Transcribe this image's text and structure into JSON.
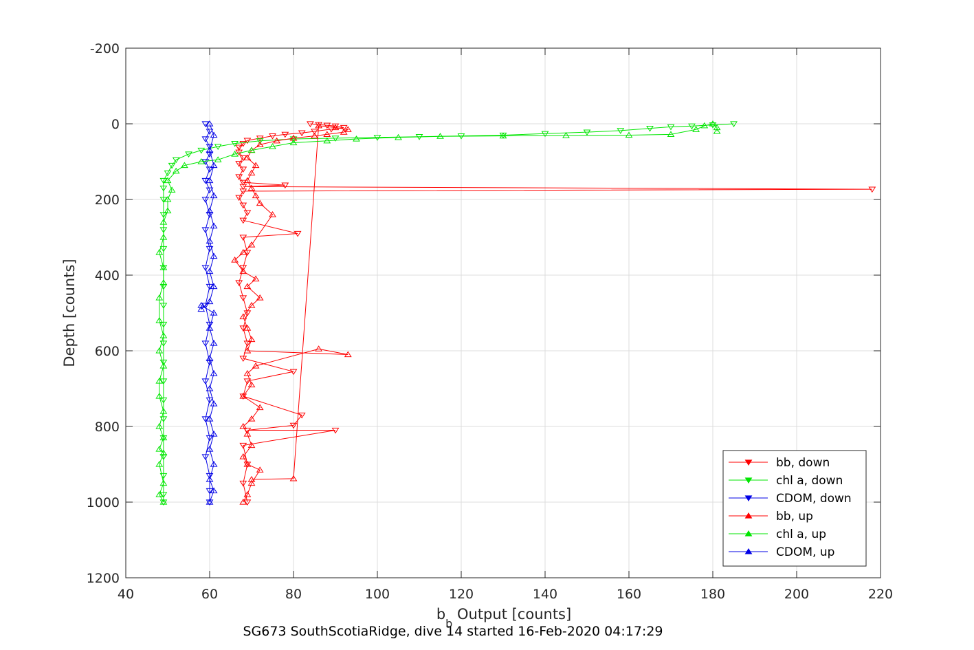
{
  "chart_data": {
    "type": "line",
    "title": "",
    "xlabel_main": "b",
    "xlabel_sub": "b",
    "xlabel_rest": " Output [counts]",
    "ylabel": "Depth [counts]",
    "caption": "SG673 SouthScotiaRidge, dive 14 started 16-Feb-2020 04:17:29",
    "xlim": [
      40,
      220
    ],
    "ylim": [
      -200,
      1200
    ],
    "y_reversed": true,
    "grid": true,
    "legend_position": "bottom-right",
    "xticks": [
      40,
      60,
      80,
      100,
      120,
      140,
      160,
      180,
      200,
      220
    ],
    "yticks": [
      -200,
      0,
      200,
      400,
      600,
      800,
      1000,
      1200
    ],
    "xtick_labels": [
      "40",
      "60",
      "80",
      "100",
      "120",
      "140",
      "160",
      "180",
      "200",
      "220"
    ],
    "ytick_labels": [
      "-200",
      "0",
      "200",
      "400",
      "600",
      "800",
      "1000",
      "1200"
    ],
    "series": [
      {
        "name": "bb, down",
        "color": "#ff0000",
        "marker": "triangle-down",
        "points": [
          [
            84,
            0
          ],
          [
            86,
            2
          ],
          [
            88,
            4
          ],
          [
            90,
            6
          ],
          [
            92,
            10
          ],
          [
            89,
            14
          ],
          [
            85,
            20
          ],
          [
            82,
            24
          ],
          [
            78,
            28
          ],
          [
            75,
            32
          ],
          [
            72,
            38
          ],
          [
            69,
            44
          ],
          [
            68,
            52
          ],
          [
            67,
            62
          ],
          [
            67,
            75
          ],
          [
            68,
            90
          ],
          [
            67,
            105
          ],
          [
            68,
            120
          ],
          [
            67,
            140
          ],
          [
            68,
            155
          ],
          [
            78,
            162
          ],
          [
            68,
            166
          ],
          [
            218,
            173
          ],
          [
            68,
            178
          ],
          [
            67,
            195
          ],
          [
            68,
            215
          ],
          [
            69,
            235
          ],
          [
            68,
            255
          ],
          [
            81,
            290
          ],
          [
            68,
            300
          ],
          [
            69,
            340
          ],
          [
            68,
            380
          ],
          [
            67,
            420
          ],
          [
            68,
            460
          ],
          [
            69,
            500
          ],
          [
            68,
            540
          ],
          [
            69,
            580
          ],
          [
            68,
            620
          ],
          [
            80,
            655
          ],
          [
            69,
            680
          ],
          [
            68,
            720
          ],
          [
            82,
            770
          ],
          [
            80,
            797
          ],
          [
            69,
            810
          ],
          [
            90,
            810
          ],
          [
            68,
            850
          ],
          [
            69,
            900
          ],
          [
            68,
            950
          ],
          [
            69,
            1000
          ]
        ]
      },
      {
        "name": "chl a, down",
        "color": "#00e600",
        "marker": "triangle-down",
        "points": [
          [
            185,
            0
          ],
          [
            180,
            3
          ],
          [
            175,
            6
          ],
          [
            170,
            8
          ],
          [
            165,
            12
          ],
          [
            158,
            18
          ],
          [
            150,
            22
          ],
          [
            140,
            26
          ],
          [
            130,
            30
          ],
          [
            120,
            32
          ],
          [
            110,
            34
          ],
          [
            100,
            36
          ],
          [
            90,
            38
          ],
          [
            80,
            40
          ],
          [
            72,
            45
          ],
          [
            66,
            52
          ],
          [
            62,
            60
          ],
          [
            58,
            70
          ],
          [
            55,
            80
          ],
          [
            52,
            95
          ],
          [
            51,
            110
          ],
          [
            50,
            130
          ],
          [
            49,
            150
          ],
          [
            49,
            170
          ],
          [
            49,
            200
          ],
          [
            49,
            240
          ],
          [
            49,
            280
          ],
          [
            49,
            330
          ],
          [
            49,
            380
          ],
          [
            49,
            430
          ],
          [
            49,
            480
          ],
          [
            49,
            530
          ],
          [
            49,
            580
          ],
          [
            49,
            630
          ],
          [
            49,
            680
          ],
          [
            49,
            730
          ],
          [
            49,
            780
          ],
          [
            49,
            830
          ],
          [
            49,
            880
          ],
          [
            49,
            930
          ],
          [
            49,
            980
          ],
          [
            49,
            1000
          ]
        ]
      },
      {
        "name": "CDOM, down",
        "color": "#0000e6",
        "marker": "triangle-down",
        "points": [
          [
            59,
            0
          ],
          [
            60,
            20
          ],
          [
            59,
            40
          ],
          [
            60,
            60
          ],
          [
            60,
            80
          ],
          [
            59,
            100
          ],
          [
            60,
            120
          ],
          [
            59,
            150
          ],
          [
            60,
            175
          ],
          [
            59,
            200
          ],
          [
            60,
            240
          ],
          [
            59,
            280
          ],
          [
            60,
            330
          ],
          [
            59,
            380
          ],
          [
            60,
            430
          ],
          [
            59,
            480
          ],
          [
            60,
            530
          ],
          [
            59,
            580
          ],
          [
            60,
            630
          ],
          [
            59,
            680
          ],
          [
            60,
            730
          ],
          [
            59,
            780
          ],
          [
            60,
            830
          ],
          [
            59,
            880
          ],
          [
            60,
            930
          ],
          [
            60,
            970
          ],
          [
            60,
            1000
          ]
        ]
      },
      {
        "name": "bb, up",
        "color": "#ff0000",
        "marker": "triangle-up",
        "points": [
          [
            68,
            1000
          ],
          [
            69,
            980
          ],
          [
            70,
            950
          ],
          [
            72,
            915
          ],
          [
            69,
            900
          ],
          [
            68,
            880
          ],
          [
            70,
            850
          ],
          [
            69,
            820
          ],
          [
            68,
            800
          ],
          [
            70,
            780
          ],
          [
            72,
            750
          ],
          [
            68,
            720
          ],
          [
            70,
            690
          ],
          [
            69,
            660
          ],
          [
            71,
            640
          ],
          [
            86,
            595
          ],
          [
            93,
            610
          ],
          [
            69,
            600
          ],
          [
            70,
            570
          ],
          [
            69,
            540
          ],
          [
            68,
            510
          ],
          [
            70,
            480
          ],
          [
            72,
            460
          ],
          [
            69,
            430
          ],
          [
            71,
            410
          ],
          [
            68,
            390
          ],
          [
            66,
            360
          ],
          [
            68,
            340
          ],
          [
            70,
            320
          ],
          [
            75,
            240
          ],
          [
            72,
            210
          ],
          [
            71,
            190
          ],
          [
            70,
            170
          ],
          [
            69,
            150
          ],
          [
            70,
            130
          ],
          [
            71,
            110
          ],
          [
            69,
            90
          ],
          [
            70,
            70
          ],
          [
            72,
            55
          ],
          [
            76,
            45
          ],
          [
            80,
            38
          ],
          [
            85,
            32
          ],
          [
            88,
            28
          ],
          [
            92,
            22
          ],
          [
            93,
            15
          ],
          [
            90,
            10
          ],
          [
            86,
            5
          ],
          [
            80,
            938
          ],
          [
            70,
            940
          ]
        ]
      },
      {
        "name": "chl a, up",
        "color": "#00e600",
        "marker": "triangle-up",
        "points": [
          [
            49,
            1000
          ],
          [
            48,
            980
          ],
          [
            49,
            950
          ],
          [
            48,
            900
          ],
          [
            49,
            870
          ],
          [
            48,
            860
          ],
          [
            49,
            830
          ],
          [
            48,
            800
          ],
          [
            49,
            760
          ],
          [
            48,
            720
          ],
          [
            48,
            680
          ],
          [
            49,
            640
          ],
          [
            48,
            600
          ],
          [
            49,
            560
          ],
          [
            48,
            520
          ],
          [
            48,
            460
          ],
          [
            49,
            420
          ],
          [
            49,
            380
          ],
          [
            48,
            340
          ],
          [
            49,
            300
          ],
          [
            49,
            260
          ],
          [
            50,
            230
          ],
          [
            50,
            200
          ],
          [
            51,
            175
          ],
          [
            50,
            150
          ],
          [
            52,
            125
          ],
          [
            54,
            110
          ],
          [
            58,
            100
          ],
          [
            62,
            95
          ],
          [
            66,
            80
          ],
          [
            70,
            70
          ],
          [
            75,
            60
          ],
          [
            80,
            50
          ],
          [
            88,
            45
          ],
          [
            95,
            40
          ],
          [
            105,
            36
          ],
          [
            115,
            33
          ],
          [
            130,
            32
          ],
          [
            145,
            31
          ],
          [
            160,
            30
          ],
          [
            170,
            28
          ],
          [
            176,
            15
          ],
          [
            178,
            5
          ],
          [
            180,
            0
          ],
          [
            181,
            10
          ],
          [
            181,
            20
          ]
        ]
      },
      {
        "name": "CDOM, up",
        "color": "#0000e6",
        "marker": "triangle-up",
        "points": [
          [
            60,
            1000
          ],
          [
            61,
            970
          ],
          [
            60,
            940
          ],
          [
            61,
            900
          ],
          [
            60,
            860
          ],
          [
            61,
            820
          ],
          [
            60,
            780
          ],
          [
            61,
            740
          ],
          [
            60,
            700
          ],
          [
            61,
            660
          ],
          [
            60,
            620
          ],
          [
            61,
            580
          ],
          [
            60,
            540
          ],
          [
            61,
            500
          ],
          [
            58,
            480
          ],
          [
            58,
            490
          ],
          [
            60,
            470
          ],
          [
            61,
            430
          ],
          [
            60,
            390
          ],
          [
            61,
            350
          ],
          [
            60,
            310
          ],
          [
            61,
            270
          ],
          [
            60,
            230
          ],
          [
            61,
            190
          ],
          [
            60,
            150
          ],
          [
            61,
            110
          ],
          [
            60,
            70
          ],
          [
            61,
            30
          ],
          [
            60,
            0
          ]
        ]
      }
    ]
  }
}
